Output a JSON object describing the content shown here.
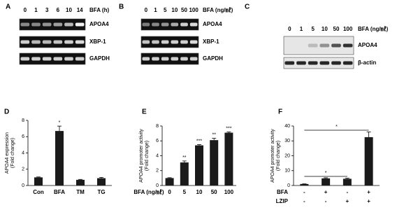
{
  "gels": [
    {
      "label": "A",
      "lanes": [
        "0",
        "1",
        "3",
        "6",
        "10",
        "14"
      ],
      "treatment": "BFA (h)",
      "rows": [
        "APOA4",
        "XBP-1",
        "GAPDH"
      ]
    },
    {
      "label": "B",
      "lanes": [
        "0",
        "1",
        "5",
        "10",
        "50",
        "100"
      ],
      "treatment": "BFA (ng/㎖)",
      "rows": [
        "APOA4",
        "XBP-1",
        "GAPDH"
      ]
    },
    {
      "label": "C",
      "lanes": [
        "0",
        "1",
        "5",
        "10",
        "50",
        "100"
      ],
      "treatment": "BFA (ng/㎖)",
      "rows": [
        "APOA4",
        "β-actin"
      ]
    }
  ],
  "chart_data": [
    {
      "type": "bar",
      "label": "D",
      "y_label": [
        "APOA4 expression",
        "(Fold change)"
      ],
      "categories": [
        "Con",
        "BFA",
        "TM",
        "TG"
      ],
      "values": [
        1,
        6.7,
        0.7,
        0.9
      ],
      "errors": [
        0.05,
        0.6,
        0.05,
        0.1
      ],
      "value_annotations": [
        null,
        "*",
        null,
        null
      ],
      "ylim": [
        0,
        8
      ],
      "yticks": [
        0,
        2,
        4,
        6,
        8
      ],
      "color": "#1a1a1a"
    },
    {
      "type": "bar",
      "label": "E",
      "y_label": [
        "APOA4 promoter activity",
        "(Fold change)"
      ],
      "x_label": "BFA (ng/㎖)",
      "categories": [
        "0",
        "5",
        "10",
        "50",
        "100"
      ],
      "values": [
        1,
        3.1,
        5.4,
        6.1,
        7.1
      ],
      "errors": [
        0.05,
        0.2,
        0.1,
        0.25,
        0.1
      ],
      "value_annotations": [
        null,
        "**",
        "***",
        "**",
        "***"
      ],
      "ylim": [
        0,
        8
      ],
      "yticks": [
        0,
        2,
        4,
        6,
        8
      ],
      "color": "#1a1a1a"
    },
    {
      "type": "bar",
      "label": "F",
      "y_label": [
        "APOA4 promoter activity",
        "(Fold change)"
      ],
      "condition_rows": [
        {
          "name": "BFA",
          "values": [
            "-",
            "+",
            "-",
            "+"
          ]
        },
        {
          "name": "LZIP",
          "values": [
            "-",
            "-",
            "+",
            "+"
          ]
        }
      ],
      "values": [
        1,
        4.8,
        4.5,
        32.5
      ],
      "errors": [
        0.1,
        0.4,
        0.4,
        3.5
      ],
      "annotations": [
        "*",
        "*"
      ],
      "ylim": [
        0,
        40
      ],
      "yticks": [
        0,
        10,
        20,
        30,
        40
      ],
      "color": "#1a1a1a"
    }
  ]
}
